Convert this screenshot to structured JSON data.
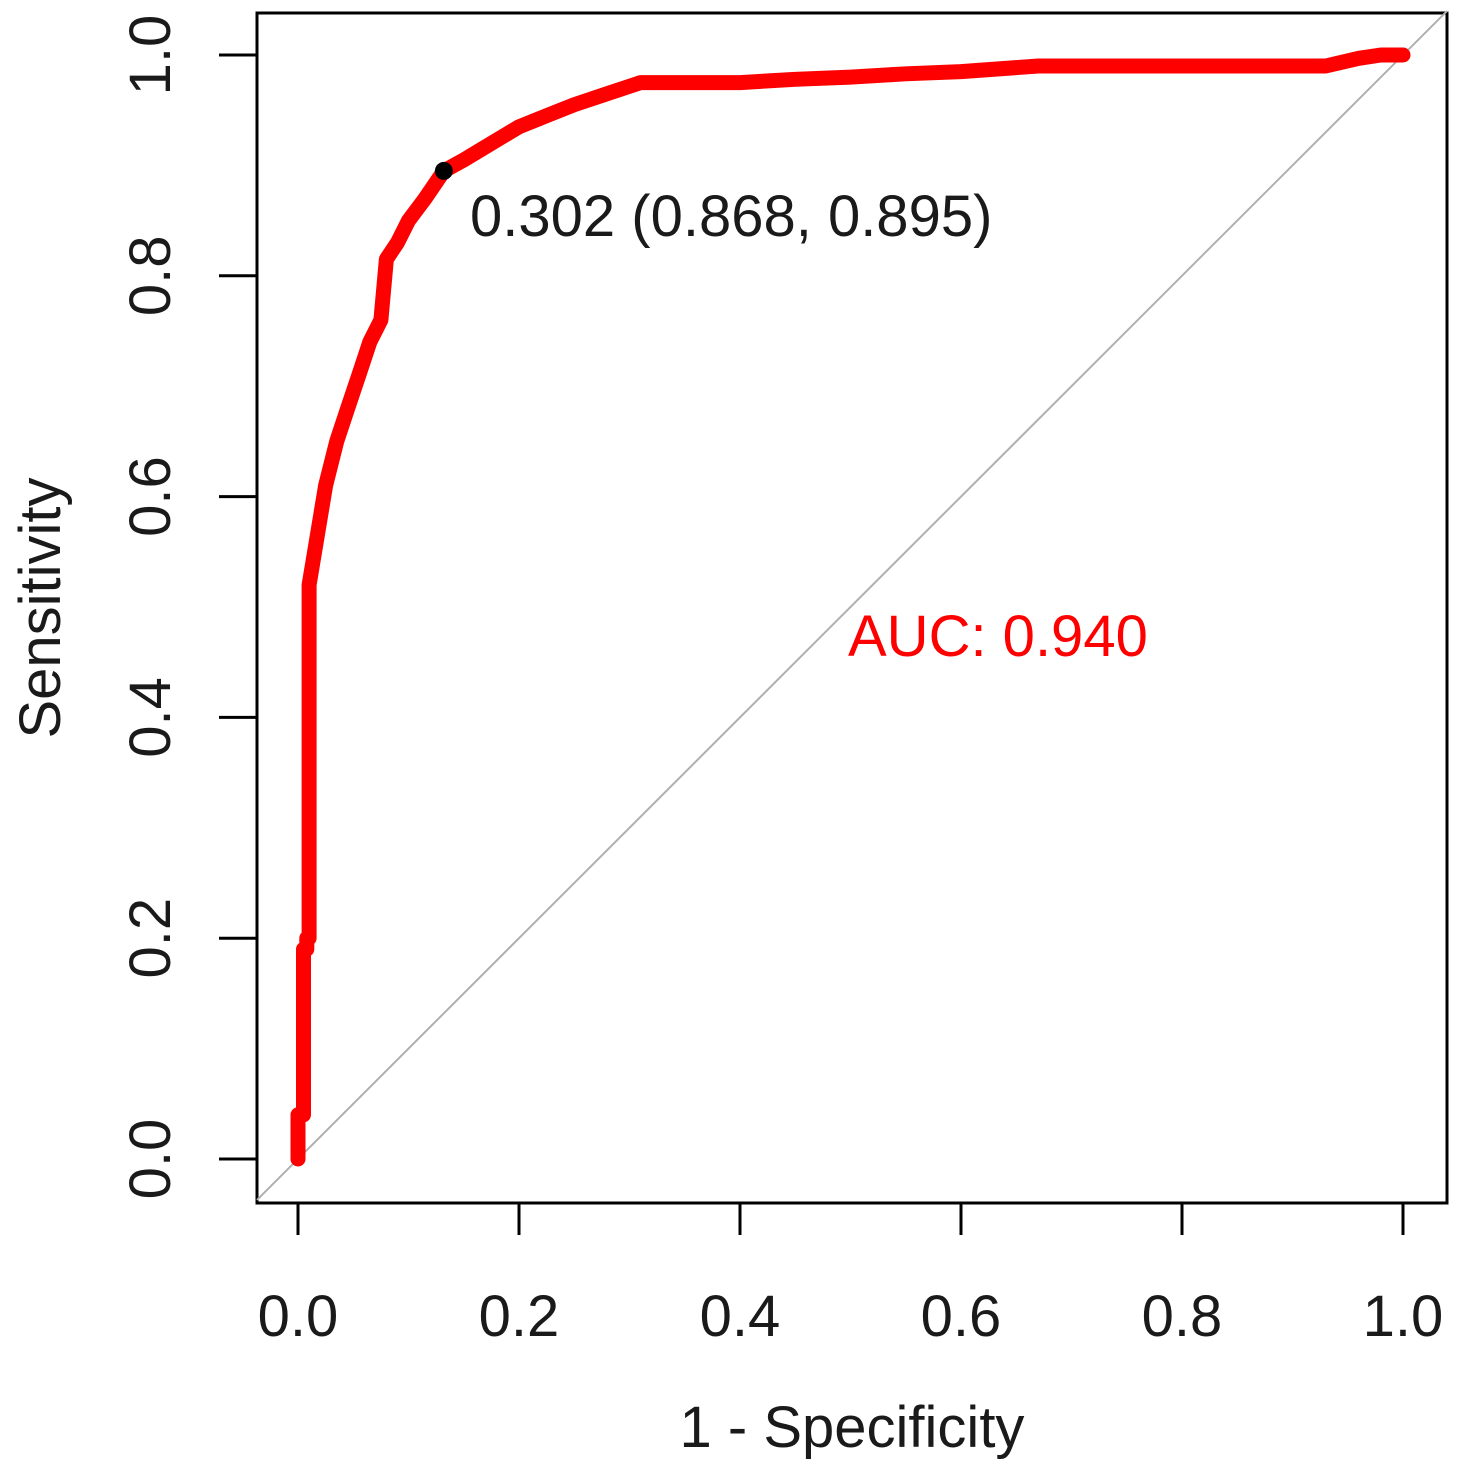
{
  "chart_data": {
    "type": "line",
    "title": "",
    "xlabel": "1 - Specificity",
    "ylabel": "Sensitivity",
    "xlim": [
      0,
      1
    ],
    "ylim": [
      0,
      1
    ],
    "x_ticks": [
      0.0,
      0.2,
      0.4,
      0.6,
      0.8,
      1.0
    ],
    "x_tick_labels": [
      "0.0",
      "0.2",
      "0.4",
      "0.6",
      "0.8",
      "1.0"
    ],
    "y_ticks": [
      0.0,
      0.2,
      0.4,
      0.6,
      0.8,
      1.0
    ],
    "y_tick_labels": [
      "0.0",
      "0.2",
      "0.4",
      "0.6",
      "0.8",
      "1.0"
    ],
    "grid": false,
    "diagonal_reference": true,
    "series": [
      {
        "color": "#ff0000",
        "x": [
          0.0,
          0.0,
          0.005,
          0.005,
          0.008,
          0.008,
          0.01,
          0.01,
          0.015,
          0.02,
          0.025,
          0.035,
          0.045,
          0.055,
          0.065,
          0.075,
          0.08,
          0.09,
          0.1,
          0.115,
          0.132,
          0.15,
          0.175,
          0.2,
          0.225,
          0.25,
          0.28,
          0.31,
          0.33,
          0.4,
          0.45,
          0.5,
          0.55,
          0.6,
          0.67,
          0.75,
          0.85,
          0.93,
          0.96,
          0.98,
          1.0
        ],
        "y": [
          0.0,
          0.04,
          0.04,
          0.19,
          0.19,
          0.2,
          0.2,
          0.52,
          0.55,
          0.58,
          0.61,
          0.65,
          0.68,
          0.71,
          0.74,
          0.76,
          0.815,
          0.83,
          0.85,
          0.87,
          0.895,
          0.905,
          0.92,
          0.935,
          0.945,
          0.955,
          0.965,
          0.975,
          0.975,
          0.975,
          0.978,
          0.98,
          0.983,
          0.985,
          0.99,
          0.99,
          0.99,
          0.99,
          0.997,
          1.0,
          1.0
        ]
      }
    ],
    "highlight_point": {
      "x": 0.132,
      "y": 0.895,
      "color": "#000000"
    },
    "annotations": {
      "threshold_label": "0.302 (0.868, 0.895)",
      "auc_label": "AUC: 0.940",
      "auc_color": "#ff0000"
    }
  }
}
